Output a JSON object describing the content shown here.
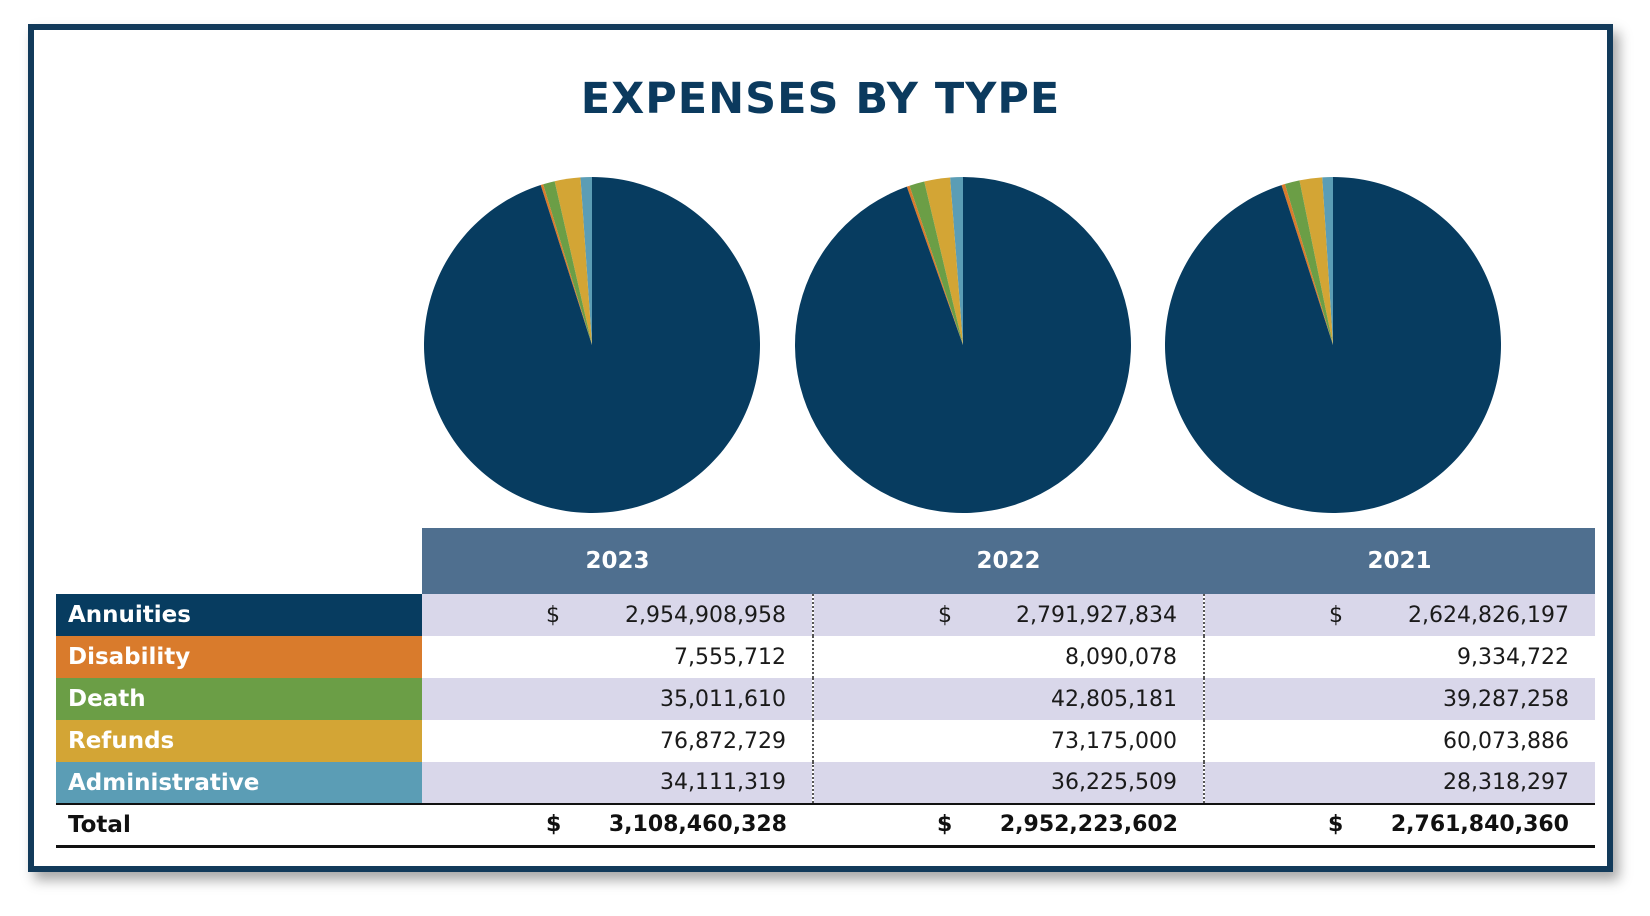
{
  "title": "EXPENSES BY TYPE",
  "colors": {
    "annuities": "#073c60",
    "disability": "#d97b2c",
    "death": "#6b9e46",
    "refunds": "#d3a535",
    "administrative": "#5b9db5"
  },
  "table": {
    "currency_symbol": "$",
    "years": [
      "2023",
      "2022",
      "2021"
    ],
    "rows": [
      {
        "label": "Annuities",
        "values": [
          "2,954,908,958",
          "2,791,927,834",
          "2,624,826,197"
        ]
      },
      {
        "label": "Disability",
        "values": [
          "7,555,712",
          "8,090,078",
          "9,334,722"
        ]
      },
      {
        "label": "Death",
        "values": [
          "35,011,610",
          "42,805,181",
          "39,287,258"
        ]
      },
      {
        "label": "Refunds",
        "values": [
          "76,872,729",
          "73,175,000",
          "60,073,886"
        ]
      },
      {
        "label": "Administrative",
        "values": [
          "34,111,319",
          "36,225,509",
          "28,318,297"
        ]
      }
    ],
    "total": {
      "label": "Total",
      "values": [
        "3,108,460,328",
        "2,952,223,602",
        "2,761,840,360"
      ]
    }
  },
  "chart_data": [
    {
      "type": "pie",
      "title": "2023",
      "categories": [
        "Annuities",
        "Disability",
        "Death",
        "Refunds",
        "Administrative"
      ],
      "values": [
        2954908958,
        7555712,
        35011610,
        76872729,
        34111319
      ]
    },
    {
      "type": "pie",
      "title": "2022",
      "categories": [
        "Annuities",
        "Disability",
        "Death",
        "Refunds",
        "Administrative"
      ],
      "values": [
        2791927834,
        8090078,
        42805181,
        73175000,
        36225509
      ]
    },
    {
      "type": "pie",
      "title": "2021",
      "categories": [
        "Annuities",
        "Disability",
        "Death",
        "Refunds",
        "Administrative"
      ],
      "values": [
        2624826197,
        9334722,
        39287258,
        60073886,
        28318297
      ]
    }
  ]
}
